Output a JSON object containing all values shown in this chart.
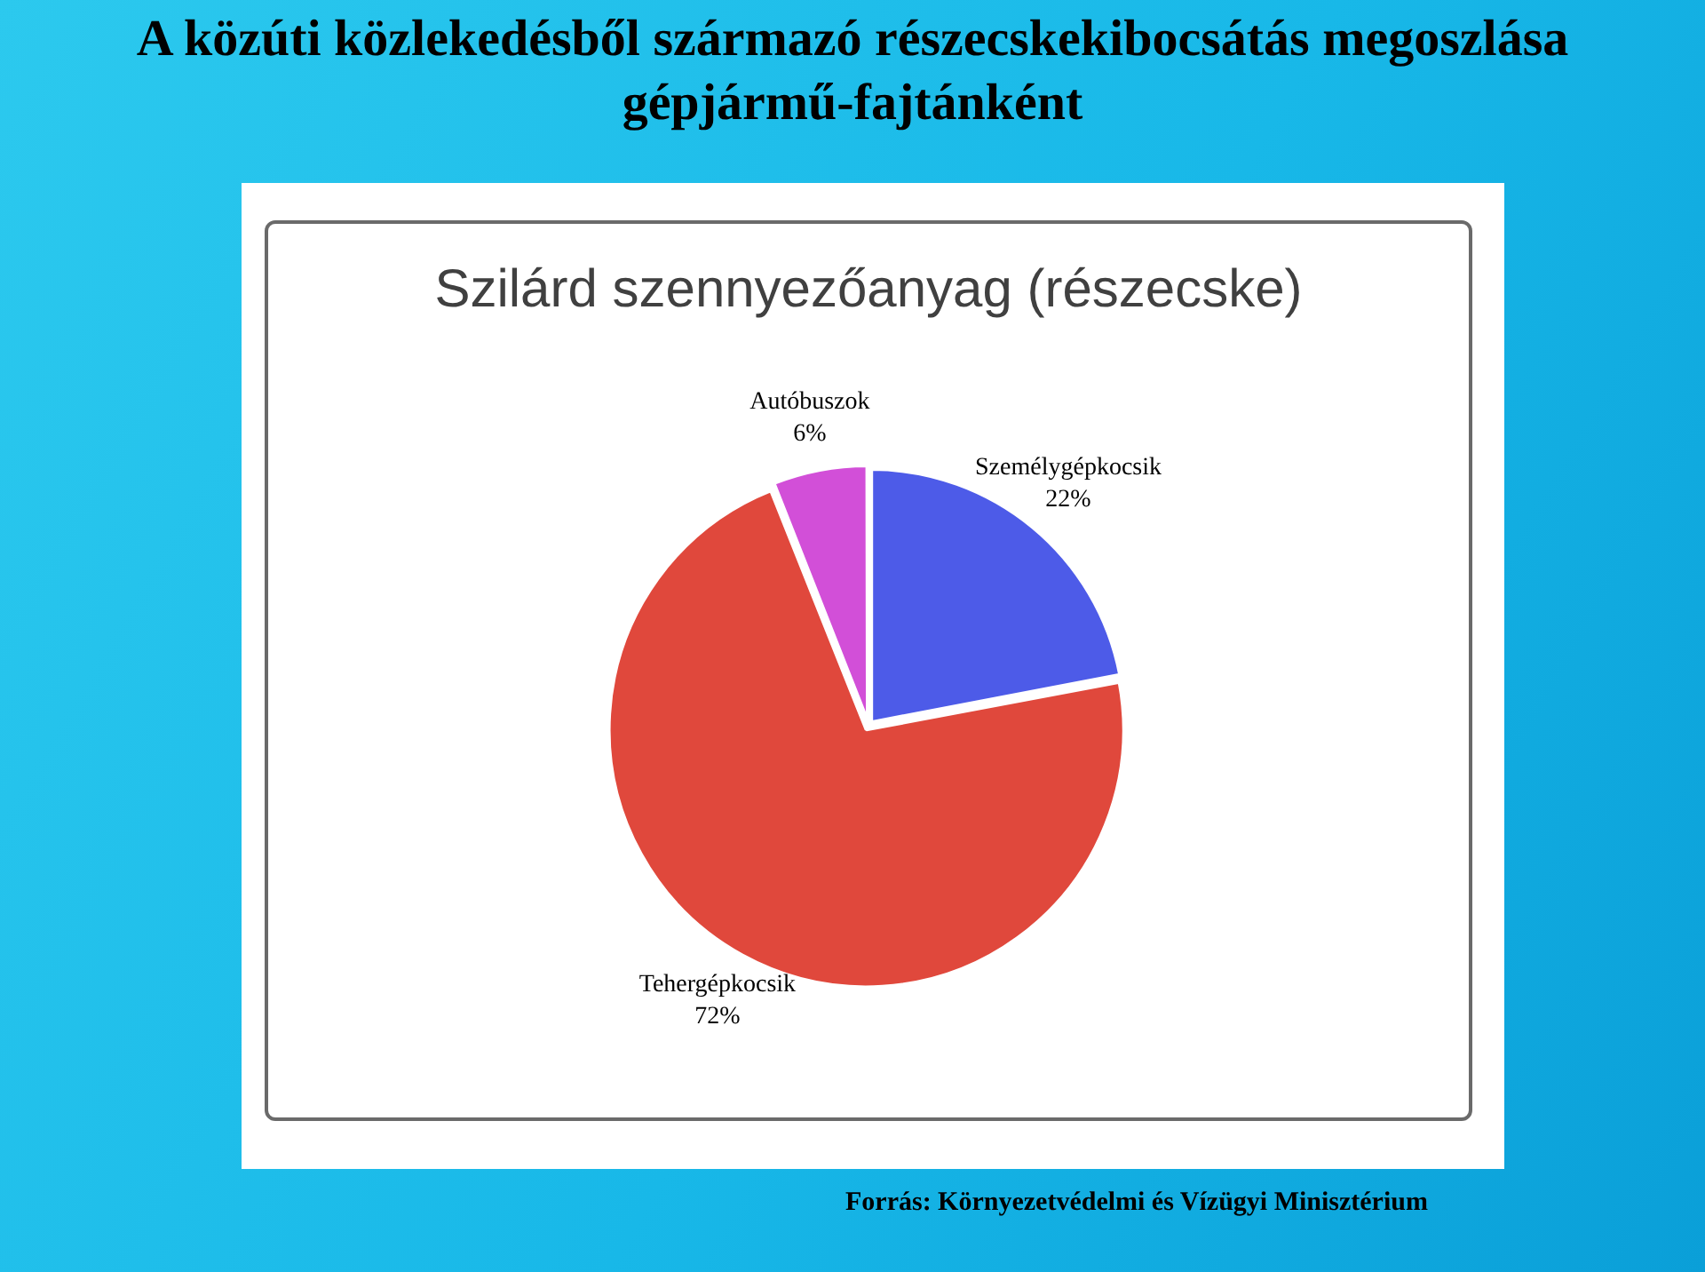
{
  "chart_data": {
    "type": "pie",
    "title": "A közúti közlekedésből származó részecskekibocsátás megoszlása gépjármű-fajtánként",
    "subtitle": "Szilárd szennyezőanyag (részecske)",
    "categories": [
      "Személygépkocsik",
      "Tehergépkocsik",
      "Autóbuszok"
    ],
    "values": [
      22,
      72,
      6
    ],
    "value_labels": [
      "22%",
      "72%",
      "6%"
    ],
    "colors": [
      "#4d5be8",
      "#e0483c",
      "#d24fd8"
    ],
    "legend": false,
    "annotations": [
      "Forrás: Környezetvédelmi és Vízügyi Minisztérium"
    ]
  }
}
